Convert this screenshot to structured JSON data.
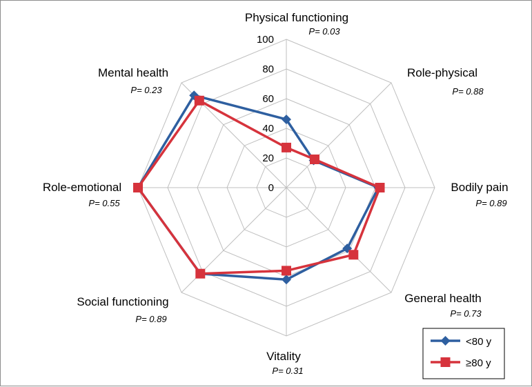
{
  "chart_data": {
    "type": "radar",
    "categories": [
      "Physical functioning",
      "Role-physical",
      "Bodily pain",
      "General health",
      "Vitality",
      "Social functioning",
      "Role-emotional",
      "Mental health"
    ],
    "p_values": [
      "P= 0.03",
      "P= 0.88",
      "P= 0.89",
      "P= 0.73",
      "P= 0.31",
      "P= 0.89",
      "P= 0.55",
      "P= 0.23"
    ],
    "radial_ticks": [
      "0",
      "20",
      "40",
      "60",
      "80",
      "100"
    ],
    "rlim": [
      0,
      100
    ],
    "series": [
      {
        "name": "<80 y",
        "color": "#2E5FA0",
        "marker": "diamond",
        "values": [
          46,
          26,
          62,
          58,
          62,
          82,
          100,
          88
        ]
      },
      {
        "name": "≥80 y",
        "color": "#D6333C",
        "marker": "square",
        "values": [
          27,
          27,
          63,
          64,
          56,
          82,
          100,
          83
        ]
      }
    ],
    "legend_position": "bottom-right"
  }
}
